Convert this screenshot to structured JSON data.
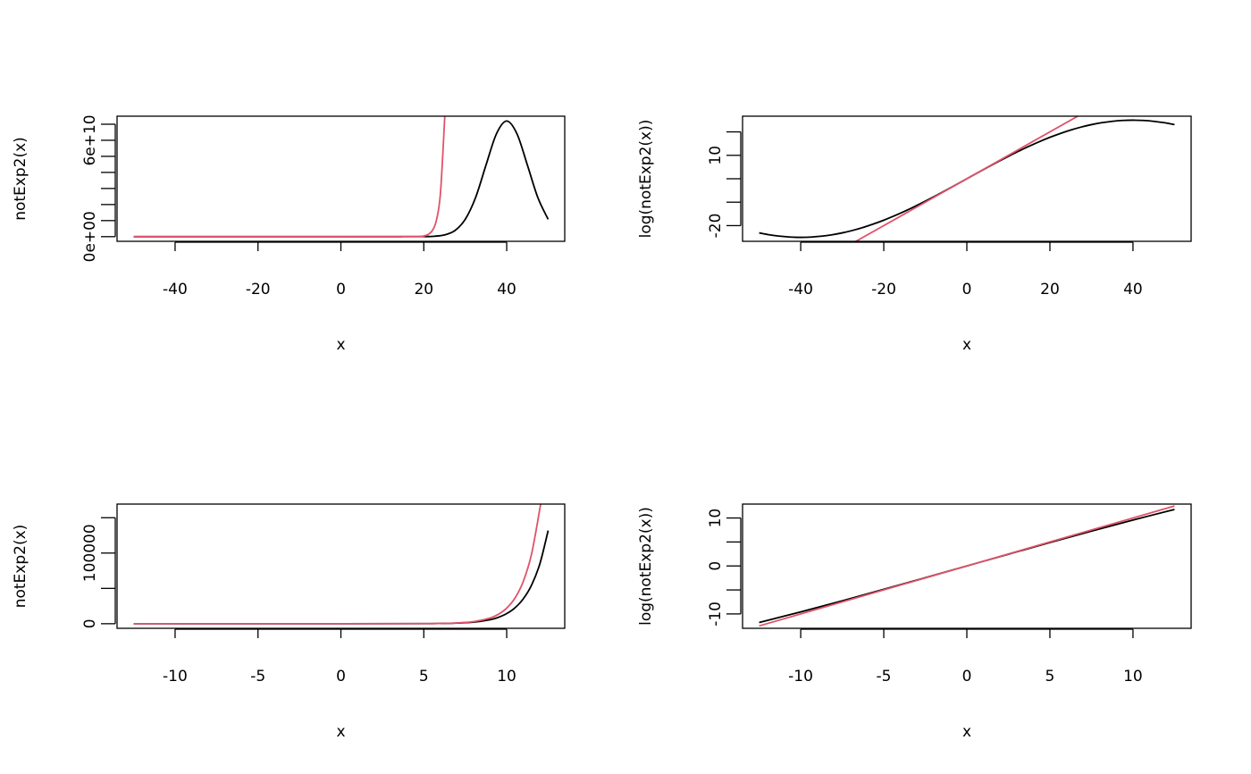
{
  "colors": {
    "black": "#000000",
    "red": "#DF536B"
  },
  "chart_data": [
    {
      "type": "line",
      "xlabel": "x",
      "ylabel": "notExp2(x)",
      "xlim": [
        -54,
        54
      ],
      "ylim": [
        -2900000000.0,
        75000000000.0
      ],
      "xticks": [
        -40,
        -20,
        0,
        20,
        40
      ],
      "xtick_labels": [
        "-40",
        "-20",
        "0",
        "20",
        "40"
      ],
      "yticks": [
        0,
        10000000000.0,
        20000000000.0,
        30000000000.0,
        40000000000.0,
        50000000000.0,
        60000000000.0,
        70000000000.0
      ],
      "ytick_labels": [
        "0e+00",
        "",
        "",
        "",
        "",
        "",
        "6e+10",
        ""
      ],
      "grid": false,
      "series": [
        {
          "color": "#000000",
          "x": [
            -50,
            0,
            12.5,
            15,
            17.5,
            20,
            22.5,
            25,
            27.5,
            30,
            32.5,
            35,
            37.5,
            40,
            42.5,
            45,
            47.5,
            50
          ],
          "y": [
            0,
            0,
            0,
            1080000.0,
            7700000.0,
            47800000.0,
            246000000.0,
            1070000000.0,
            3770000000.0,
            10800000000.0,
            24400000000.0,
            44500000000.0,
            63900000000.0,
            72000000000.0,
            63900000000.0,
            44500000000.0,
            24400000000.0,
            10800000000.0
          ]
        },
        {
          "color": "#DF536B",
          "x": [
            -50,
            0,
            18,
            20,
            21,
            22,
            23,
            24,
            25,
            25.1
          ],
          "y": [
            0,
            1,
            66000000.0,
            485000000.0,
            1320000000.0,
            3580000000.0,
            9740000000.0,
            26500000000.0,
            72000000000.0,
            79600000000.0
          ]
        }
      ]
    },
    {
      "type": "line",
      "xlabel": "x",
      "ylabel": "log(notExp2(x))",
      "xlim": [
        -54,
        54
      ],
      "ylim": [
        -26.7,
        26.7
      ],
      "xticks": [
        -40,
        -20,
        0,
        20,
        40
      ],
      "xtick_labels": [
        "-40",
        "-20",
        "0",
        "20",
        "40"
      ],
      "yticks": [
        -20,
        -10,
        0,
        10,
        20
      ],
      "ytick_labels": [
        "-20",
        "",
        "",
        "10",
        ""
      ],
      "grid": false,
      "series": [
        {
          "color": "#000000",
          "x": [
            -50,
            -47.5,
            -45,
            -42.5,
            -40,
            -37.5,
            -35,
            -32.5,
            -30,
            -27.5,
            -25,
            -22.5,
            -20,
            -17.5,
            -15,
            -12.5,
            -10,
            -7.5,
            -5,
            -2.5,
            0,
            2.5,
            5,
            7.5,
            10,
            12.5,
            15,
            17.5,
            20,
            22.5,
            25,
            27.5,
            30,
            32.5,
            35,
            37.5,
            40,
            42.5,
            45,
            47.5,
            50
          ],
          "y": [
            -23.1,
            -23.92,
            -24.52,
            -24.88,
            -25,
            -24.88,
            -24.52,
            -23.92,
            -23.1,
            -22.05,
            -20.79,
            -19.32,
            -17.68,
            -15.86,
            -13.89,
            -11.79,
            -9.57,
            -7.26,
            -4.88,
            -2.45,
            0,
            2.45,
            4.88,
            7.26,
            9.57,
            11.79,
            13.89,
            15.86,
            17.68,
            19.32,
            20.79,
            22.05,
            23.1,
            23.92,
            24.52,
            24.88,
            25,
            24.88,
            24.52,
            23.92,
            23.1
          ]
        },
        {
          "color": "#DF536B",
          "x": [
            -50,
            50
          ],
          "y": [
            -50,
            50
          ]
        }
      ]
    },
    {
      "type": "line",
      "xlabel": "x",
      "ylabel": "notExp2(x)",
      "xlim": [
        -13.5,
        13.5
      ],
      "ylim": [
        -6500,
        169300
      ],
      "xticks": [
        -10,
        -5,
        0,
        5,
        10
      ],
      "xtick_labels": [
        "-10",
        "-5",
        "0",
        "5",
        "10"
      ],
      "yticks": [
        0,
        50000,
        100000,
        150000
      ],
      "ytick_labels": [
        "0",
        "",
        "100000",
        ""
      ],
      "grid": false,
      "series": [
        {
          "color": "#000000",
          "x": [
            -12.5,
            0,
            5,
            6,
            7,
            8,
            9,
            9.5,
            10,
            10.5,
            11,
            11.5,
            12,
            12.5
          ],
          "y": [
            0,
            1,
            132,
            342,
            885,
            2265,
            5728,
            9060,
            14330,
            22500,
            35200,
            54700,
            84800,
            131800
          ]
        },
        {
          "color": "#DF536B",
          "x": [
            -12.5,
            0,
            5,
            6,
            7,
            8,
            9,
            9.5,
            10,
            10.5,
            11,
            11.5,
            12,
            12.05
          ],
          "y": [
            0,
            1,
            148,
            403,
            1097,
            2981,
            8103,
            13360,
            22026,
            36316,
            59874,
            98716,
            162755,
            171000
          ]
        }
      ]
    },
    {
      "type": "line",
      "xlabel": "x",
      "ylabel": "log(notExp2(x))",
      "xlim": [
        -13.5,
        13.5
      ],
      "ylim": [
        -13,
        12.9
      ],
      "xticks": [
        -10,
        -5,
        0,
        5,
        10
      ],
      "xtick_labels": [
        "-10",
        "-5",
        "0",
        "5",
        "10"
      ],
      "yticks": [
        -10,
        -5,
        0,
        5,
        10
      ],
      "ytick_labels": [
        "-10",
        "",
        "0",
        "",
        "10"
      ],
      "grid": false,
      "series": [
        {
          "color": "#000000",
          "x": [
            -12.5,
            -10,
            -7.5,
            -5,
            -2.5,
            0,
            2.5,
            5,
            7.5,
            10,
            12.5
          ],
          "y": [
            -11.79,
            -9.57,
            -7.26,
            -4.88,
            -2.45,
            0,
            2.45,
            4.88,
            7.26,
            9.57,
            11.79
          ]
        },
        {
          "color": "#DF536B",
          "x": [
            -12.5,
            12.5
          ],
          "y": [
            -12.5,
            12.5
          ]
        }
      ]
    }
  ]
}
